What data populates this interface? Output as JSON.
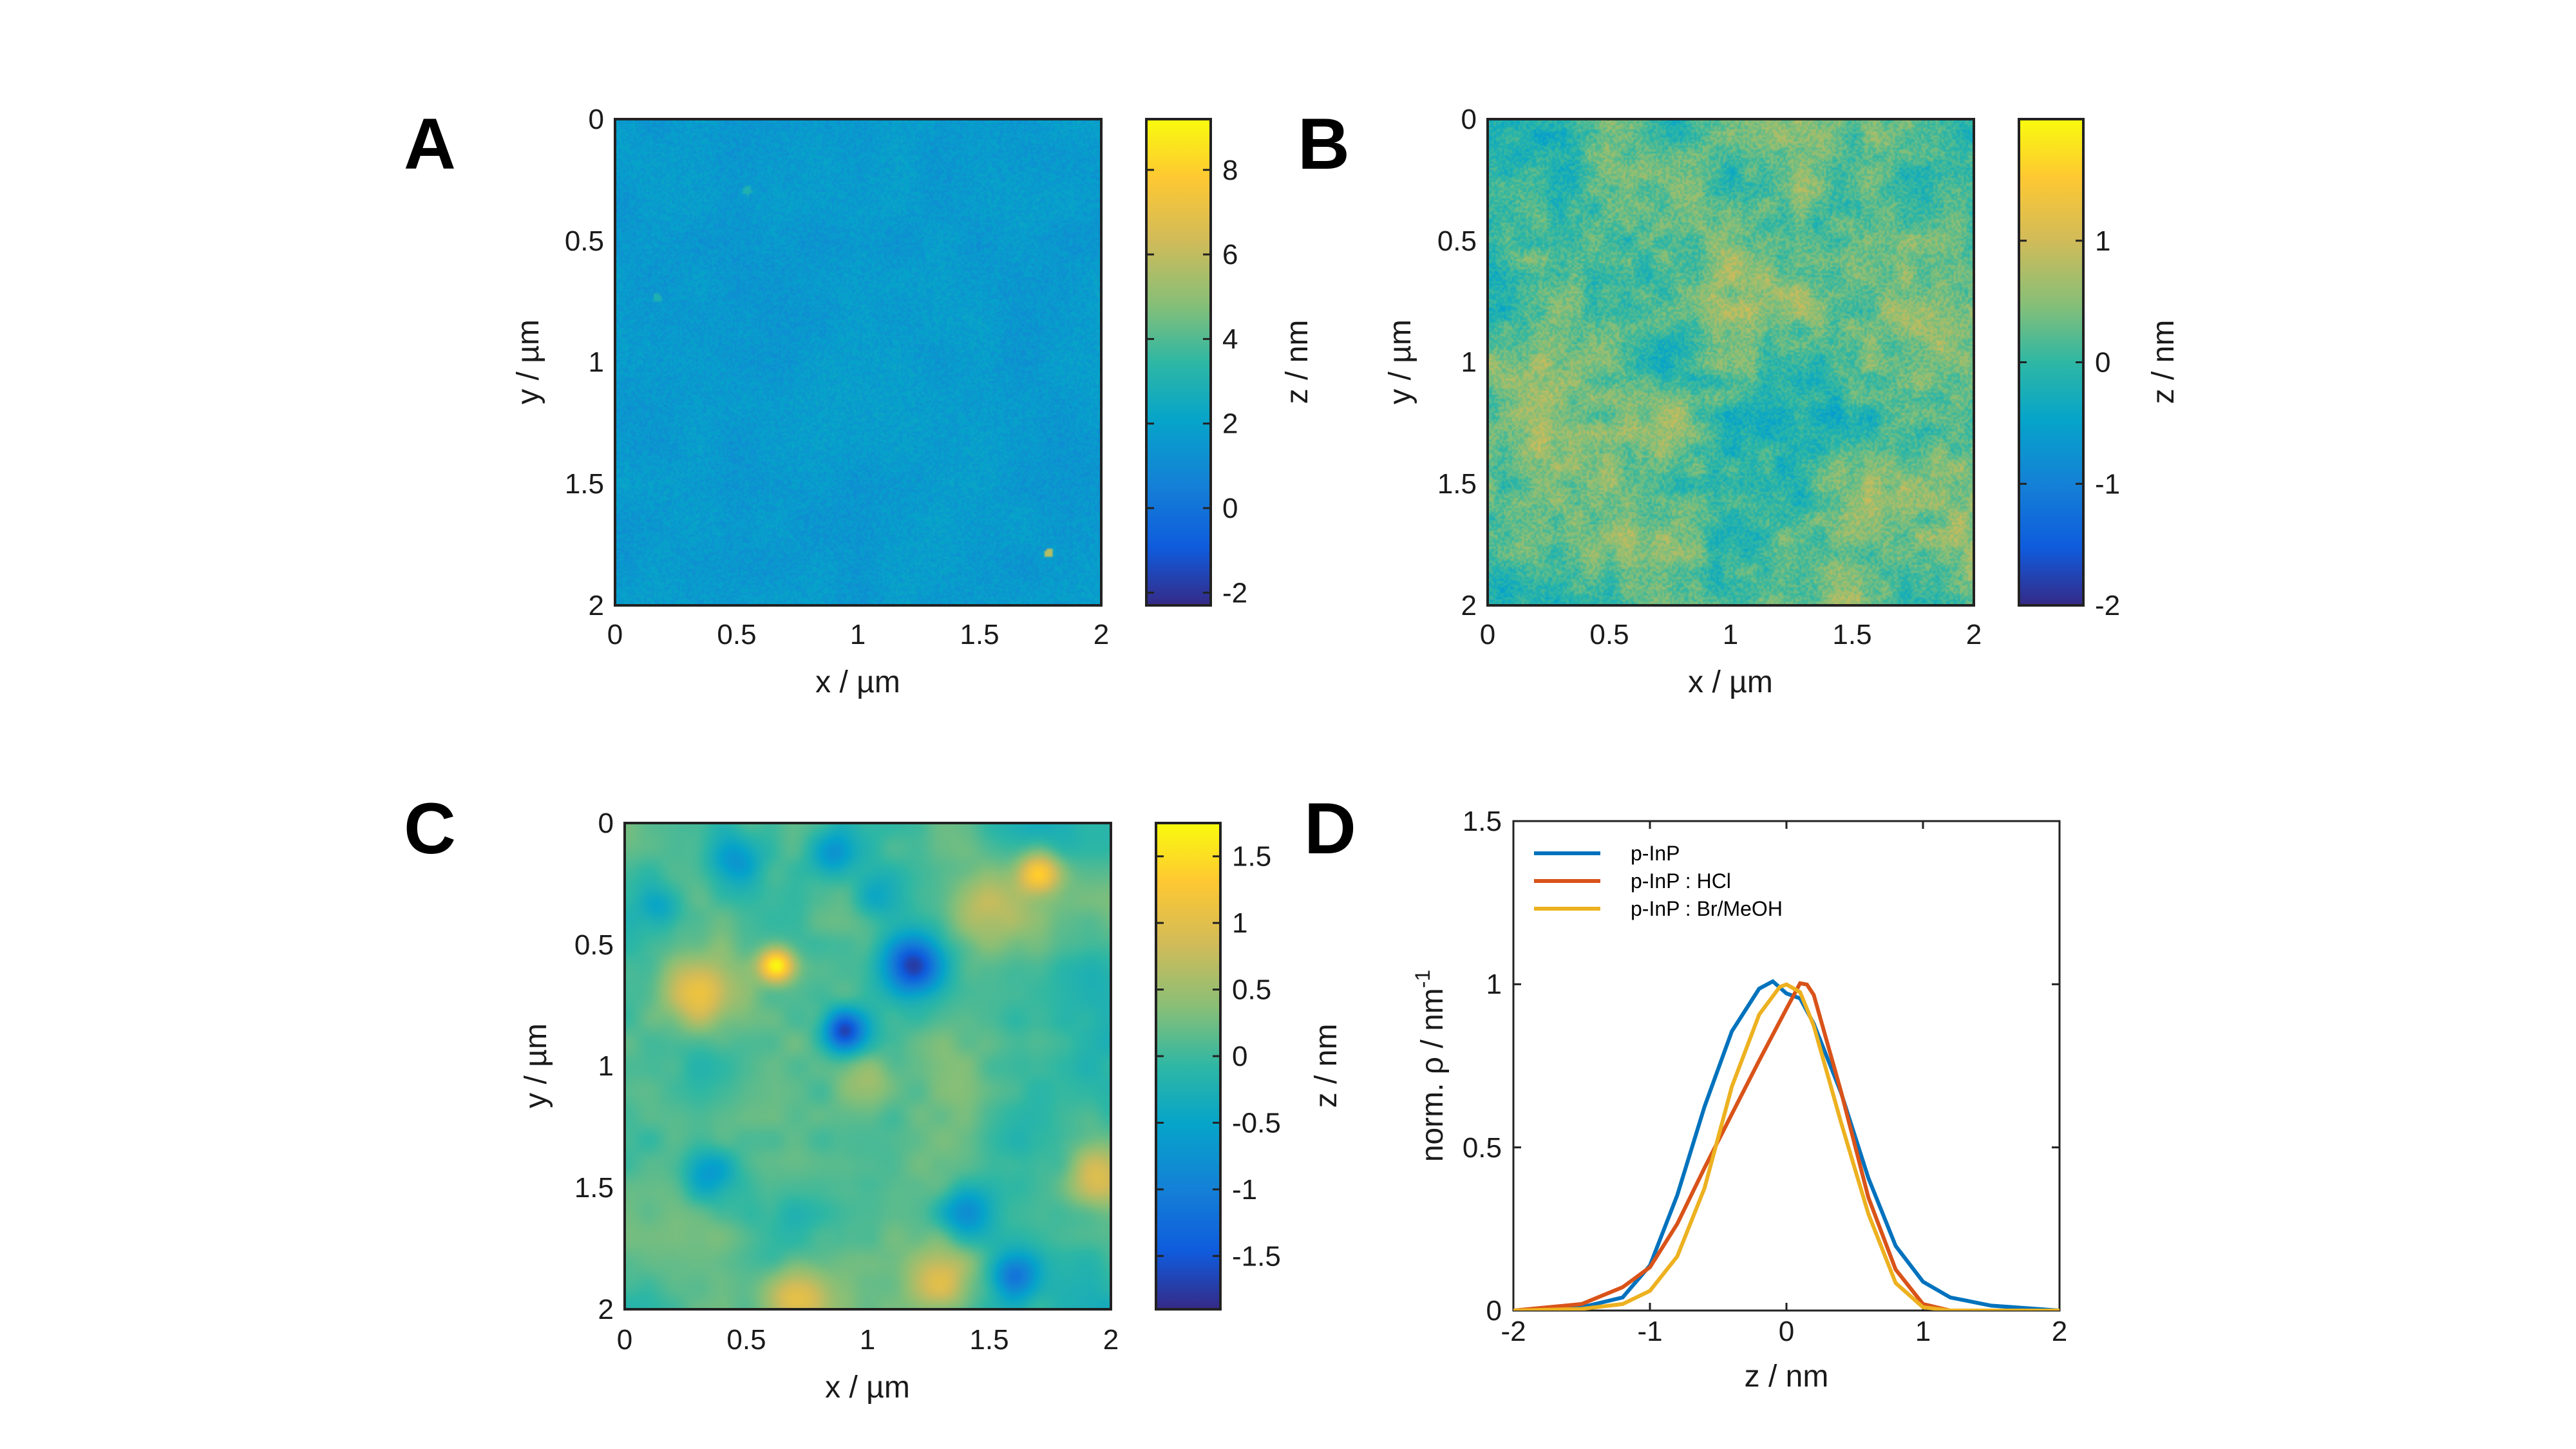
{
  "figure": {
    "panels": [
      "A",
      "B",
      "C",
      "D"
    ]
  },
  "chart_data": [
    {
      "panel": "A",
      "type": "heatmap",
      "title": "",
      "xlabel": "x / µm",
      "ylabel": "y / µm",
      "colorbar_label": "z / nm",
      "xlim": [
        0,
        2
      ],
      "ylim": [
        0,
        2
      ],
      "xticks": [
        "0",
        "0.5",
        "1",
        "1.5",
        "2"
      ],
      "yticks": [
        "0",
        "0.5",
        "1",
        "1.5",
        "2"
      ],
      "zlim": [
        -2.3,
        9.2
      ],
      "colorbar_ticks": [
        "-2",
        "0",
        "2",
        "4",
        "6",
        "8"
      ],
      "colorbar_tick_values": [
        -2,
        0,
        2,
        4,
        6,
        8
      ],
      "texture": {
        "mean_level": 0.34,
        "noise": 0.04,
        "spots": [
          [
            0.54,
            0.29,
            0.45
          ],
          [
            1.78,
            1.78,
            0.7
          ],
          [
            0.17,
            0.73,
            0.45
          ]
        ]
      }
    },
    {
      "panel": "B",
      "type": "heatmap",
      "title": "",
      "xlabel": "x / µm",
      "ylabel": "y / µm",
      "colorbar_label": "z / nm",
      "xlim": [
        0,
        2
      ],
      "ylim": [
        0,
        2
      ],
      "xticks": [
        "0",
        "0.5",
        "1",
        "1.5",
        "2"
      ],
      "yticks": [
        "0",
        "0.5",
        "1",
        "1.5",
        "2"
      ],
      "zlim": [
        -2.0,
        2.0
      ],
      "colorbar_ticks": [
        "1",
        "0",
        "-1",
        "-2"
      ],
      "colorbar_tick_values": [
        1,
        0,
        -1,
        -2
      ],
      "texture": {
        "mean_level": 0.55,
        "noise": 0.14,
        "spots": []
      }
    },
    {
      "panel": "C",
      "type": "heatmap",
      "title": "",
      "xlabel": "x / µm",
      "ylabel": "y / µm",
      "colorbar_label": "z / nm",
      "xlim": [
        0,
        2
      ],
      "ylim": [
        0,
        2
      ],
      "xticks": [
        "0",
        "0.5",
        "1",
        "1.5",
        "2"
      ],
      "yticks": [
        "0",
        "0.5",
        "1",
        "1.5",
        "2"
      ],
      "zlim": [
        -1.9,
        1.75
      ],
      "colorbar_ticks": [
        "1.5",
        "1",
        "0.5",
        "0",
        "-0.5",
        "-1",
        "-1.5"
      ],
      "colorbar_tick_values": [
        1.5,
        1,
        0.5,
        0,
        -0.5,
        -1,
        -1.5
      ],
      "texture": {
        "mean_level": 0.52,
        "noise": 0.03,
        "blobs": [
          [
            0.62,
            0.58,
            0.95,
            0.05
          ],
          [
            1.18,
            0.58,
            0.02,
            0.09
          ],
          [
            0.9,
            0.85,
            0.08,
            0.06
          ],
          [
            0.45,
            0.15,
            0.3,
            0.08
          ],
          [
            0.85,
            0.12,
            0.3,
            0.07
          ],
          [
            1.7,
            0.2,
            0.85,
            0.06
          ],
          [
            1.45,
            0.35,
            0.72,
            0.12
          ],
          [
            1.0,
            1.05,
            0.72,
            0.1
          ],
          [
            1.4,
            1.6,
            0.25,
            0.08
          ],
          [
            1.6,
            1.85,
            0.22,
            0.07
          ],
          [
            0.35,
            1.45,
            0.3,
            0.08
          ],
          [
            1.3,
            1.9,
            0.8,
            0.1
          ],
          [
            0.15,
            0.35,
            0.4,
            0.06
          ],
          [
            0.3,
            0.7,
            0.75,
            0.1
          ],
          [
            1.95,
            1.45,
            0.75,
            0.1
          ],
          [
            1.05,
            0.3,
            0.35,
            0.08
          ],
          [
            0.7,
            1.95,
            0.78,
            0.09
          ],
          [
            0.1,
            1.85,
            0.55,
            0.1
          ]
        ]
      }
    },
    {
      "panel": "D",
      "type": "line",
      "title": "",
      "xlabel": "z / nm",
      "ylabel": "norm. ρ / nm",
      "ylabel_superscript": "-1",
      "xlim": [
        -2,
        2
      ],
      "ylim": [
        0,
        1.5
      ],
      "xticks": [
        "-2",
        "-1",
        "0",
        "1",
        "2"
      ],
      "xtick_values": [
        -2,
        -1,
        0,
        1,
        2
      ],
      "yticks": [
        "0",
        "0.5",
        "1",
        "1.5"
      ],
      "ytick_values": [
        0,
        0.5,
        1,
        1.5
      ],
      "legend_position": "top-left",
      "series": [
        {
          "name": "p-InP",
          "color": "#0072BD",
          "x": [
            -2,
            -1.5,
            -1.2,
            -1.0,
            -0.8,
            -0.6,
            -0.4,
            -0.2,
            -0.1,
            0,
            0.1,
            0.2,
            0.4,
            0.6,
            0.8,
            1.0,
            1.2,
            1.5,
            2
          ],
          "y": [
            0,
            0.01,
            0.04,
            0.14,
            0.36,
            0.62,
            0.85,
            0.98,
            1.0,
            0.98,
            0.95,
            0.88,
            0.66,
            0.4,
            0.2,
            0.09,
            0.04,
            0.015,
            0
          ]
        },
        {
          "name": "p-InP : HCl",
          "color": "#D95319",
          "x": [
            -2,
            -1.5,
            -1.2,
            -1.0,
            -0.8,
            -0.6,
            -0.4,
            -0.2,
            0,
            0.1,
            0.15,
            0.2,
            0.4,
            0.6,
            0.8,
            1.0,
            1.2,
            1.5,
            2
          ],
          "y": [
            0,
            0.02,
            0.07,
            0.13,
            0.26,
            0.44,
            0.6,
            0.76,
            0.93,
            1.0,
            1.0,
            0.96,
            0.67,
            0.35,
            0.12,
            0.02,
            0.0,
            0.0,
            0
          ]
        },
        {
          "name": "p-InP : Br/MeOH",
          "color": "#EDB120",
          "x": [
            -2,
            -1.5,
            -1.2,
            -1.0,
            -0.8,
            -0.6,
            -0.4,
            -0.2,
            -0.05,
            0,
            0.1,
            0.2,
            0.4,
            0.6,
            0.8,
            1.0,
            1.2,
            1.5,
            2
          ],
          "y": [
            0,
            0.005,
            0.02,
            0.06,
            0.17,
            0.38,
            0.68,
            0.9,
            1.0,
            1.0,
            0.97,
            0.88,
            0.58,
            0.29,
            0.09,
            0.01,
            0.0,
            0.0,
            0
          ]
        }
      ]
    }
  ]
}
